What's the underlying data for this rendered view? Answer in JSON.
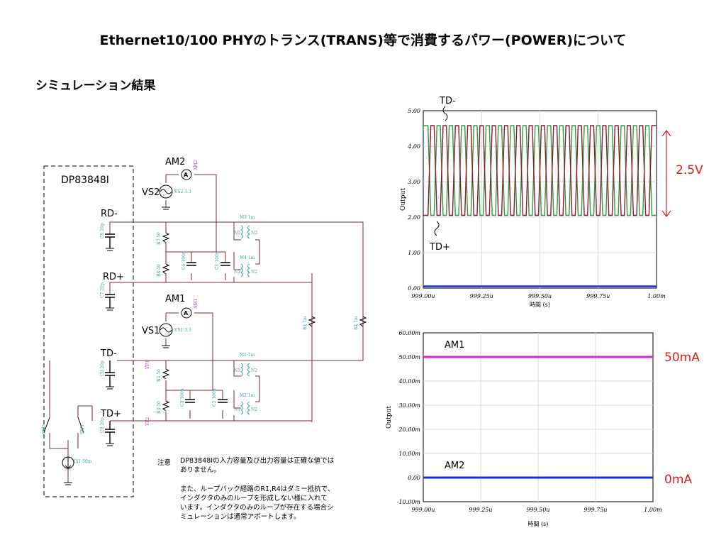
{
  "title": "Ethernet10/100 PHYのトランス(TRANS)等で消費するパワー(POWER)について",
  "subtitle": "シミュレーション結果",
  "note": {
    "label": "注意",
    "line1": "DP83848Iの入力容量及び出力容量は正確な値では",
    "line2": "ありません。",
    "line3": "また、ループバック経路のR1,R4はダミー抵抗で、",
    "line4": "インダクタのみのループを形成しない様に入れて",
    "line5": "います。インダクタのみのループが存在する場合シ",
    "line6": "ミュレーションは通常アボートします。"
  },
  "schematic": {
    "chip_label": "DP83848I",
    "ammeters": [
      "AM2",
      "AM1"
    ],
    "sources": [
      "VS2",
      "VS1"
    ],
    "source_values": [
      "VS2 3.3",
      "VS1 3.3"
    ],
    "nets": [
      "RD-",
      "RD+",
      "TD-",
      "TD+"
    ],
    "transformers": [
      "M3 1m",
      "M4 1m",
      "M1 1m",
      "M2 1m"
    ],
    "winding_labels": {
      "n1": "N1",
      "n2": "N2"
    },
    "resistors": [
      "R7 50",
      "R8 50",
      "R2 50",
      "R3 50",
      "R1 1m",
      "R4 1m"
    ],
    "capacitors": [
      "C6 20p",
      "C7 20p",
      "C8 20p",
      "C9 20p",
      "C4 100n",
      "C1 100n",
      "C5 100n",
      "C2 100n"
    ],
    "switches": [
      "SW2",
      "SW1"
    ],
    "current_source": "IS1 50m",
    "probes": [
      "VP1",
      "VP2"
    ],
    "ammeter_tags": [
      "AM2",
      "AM1"
    ],
    "ammeter_glyph": "A"
  },
  "chart_data": [
    {
      "type": "line",
      "ylabel": "Output",
      "xlabel": "時間 (s)",
      "x_ticks": [
        "999.00u",
        "999.25u",
        "999.50u",
        "999.75u",
        "1.00m"
      ],
      "y_ticks": [
        "0.00",
        "1.00",
        "2.00",
        "3.00",
        "4.00",
        "5.00"
      ],
      "xlim": [
        0.000999,
        0.001
      ],
      "ylim": [
        0,
        5
      ],
      "cycles": 19,
      "series": [
        {
          "name": "TD-",
          "color": "#2e9e3e",
          "low": 2.05,
          "high": 4.58,
          "phase": 0
        },
        {
          "name": "TD+",
          "color": "#8b1a2e",
          "low": 2.05,
          "high": 4.58,
          "phase": 1
        },
        {
          "name": "",
          "color": "#1a2ed6",
          "constant": 0.05
        }
      ],
      "annotations": {
        "td_minus": "TD-",
        "td_plus": "TD+",
        "swing": "2.5V"
      }
    },
    {
      "type": "line",
      "ylabel": "Output",
      "xlabel": "時間 (s)",
      "x_ticks": [
        "999.00u",
        "999.25u",
        "999.50u",
        "999.75u",
        "1.00m"
      ],
      "y_ticks": [
        "60.00m",
        "50.00m",
        "40.00m",
        "30.00m",
        "20.00m",
        "10.00m",
        "0.00",
        "-10.00m"
      ],
      "xlim": [
        0.000999,
        0.001
      ],
      "ylim": [
        -0.01,
        0.06
      ],
      "series": [
        {
          "name": "AM1",
          "color": "#e020e0",
          "constant": 0.05
        },
        {
          "name": "AM2",
          "color": "#1a2ed6",
          "constant": 0.0
        }
      ],
      "annotations": {
        "am1": "AM1",
        "am2": "AM2",
        "am1_value": "50mA",
        "am2_value": "0mA"
      }
    }
  ]
}
